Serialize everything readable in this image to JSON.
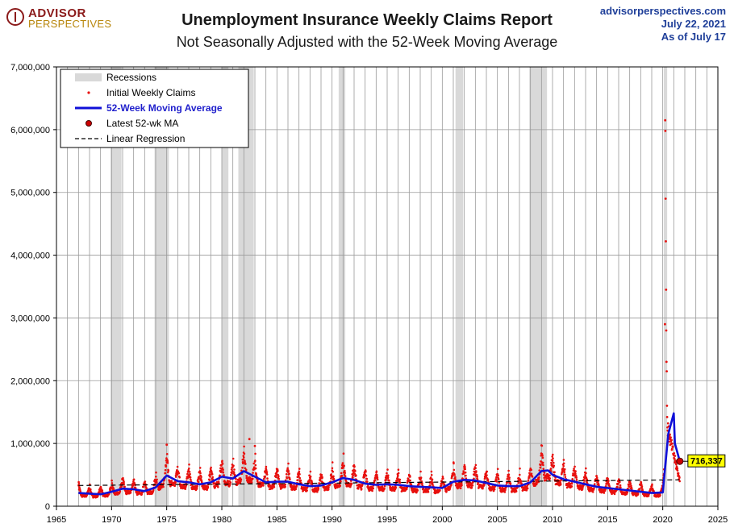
{
  "logo": {
    "line1": "ADVISOR",
    "line2": "PERSPECTIVES"
  },
  "header": {
    "title": "Unemployment Insurance Weekly Claims Report",
    "subtitle": "Not Seasonally Adjusted with the 52-Week Moving Average",
    "site": "advisorperspectives.com",
    "date": "July 22, 2021",
    "as_of": "As of July 17"
  },
  "colors": {
    "ma": "#1010d8",
    "claims": "#e8100e",
    "recession": "#d9d9d9",
    "callout": "#ffff00"
  },
  "chart_data": {
    "type": "line",
    "x_range": [
      1965,
      2025
    ],
    "y_range": [
      0,
      7000000
    ],
    "x_ticks": [
      "1965",
      "1970",
      "1975",
      "1980",
      "1985",
      "1990",
      "1995",
      "2000",
      "2005",
      "2010",
      "2015",
      "2020",
      "2025"
    ],
    "y_ticks": [
      "0",
      "1,000,000",
      "2,000,000",
      "3,000,000",
      "4,000,000",
      "5,000,000",
      "6,000,000",
      "7,000,000"
    ],
    "legend": {
      "position": "top-left",
      "entries": [
        "Recessions",
        "Initial Weekly Claims",
        "52-Week Moving Average",
        "Latest 52-wk MA",
        "Linear Regression"
      ]
    },
    "recessions": [
      [
        1969.9,
        1970.9
      ],
      [
        1973.9,
        1975.2
      ],
      [
        1980.0,
        1980.6
      ],
      [
        1981.5,
        1982.9
      ],
      [
        1990.6,
        1991.2
      ],
      [
        2001.2,
        2001.9
      ],
      [
        2007.9,
        2009.5
      ],
      [
        2020.1,
        2020.4
      ]
    ],
    "moving_average": {
      "x": [
        1967.0,
        1968.0,
        1969.0,
        1970.0,
        1971.0,
        1972.0,
        1973.0,
        1974.0,
        1975.0,
        1976.0,
        1977.0,
        1978.0,
        1979.0,
        1980.0,
        1981.0,
        1982.0,
        1983.0,
        1984.0,
        1985.0,
        1986.0,
        1987.0,
        1988.0,
        1989.0,
        1990.0,
        1991.0,
        1992.0,
        1993.0,
        1994.0,
        1995.0,
        1996.0,
        1997.0,
        1998.0,
        1999.0,
        2000.0,
        2001.0,
        2002.0,
        2003.0,
        2004.0,
        2005.0,
        2006.0,
        2007.0,
        2008.0,
        2009.0,
        2009.6,
        2010.0,
        2011.0,
        2012.0,
        2013.0,
        2014.0,
        2015.0,
        2016.0,
        2017.0,
        2018.0,
        2019.0,
        2020.0,
        2020.3,
        2020.5,
        2021.0,
        2021.1,
        2021.55
      ],
      "y": [
        210000,
        200000,
        190000,
        230000,
        280000,
        270000,
        240000,
        300000,
        490000,
        400000,
        380000,
        350000,
        380000,
        470000,
        440000,
        560000,
        470000,
        380000,
        390000,
        390000,
        350000,
        320000,
        330000,
        380000,
        450000,
        420000,
        360000,
        340000,
        350000,
        340000,
        320000,
        310000,
        300000,
        290000,
        390000,
        420000,
        410000,
        370000,
        330000,
        320000,
        320000,
        380000,
        560000,
        570000,
        500000,
        430000,
        390000,
        350000,
        310000,
        290000,
        270000,
        250000,
        230000,
        210000,
        220000,
        780000,
        1150000,
        1480000,
        1000000,
        716337
      ]
    },
    "regression": {
      "x": [
        1967,
        2021.5
      ],
      "y": [
        330000,
        420000
      ]
    },
    "claims_spikes": {
      "x": [
        1975.0,
        1982.5,
        1983.0,
        2009.0,
        2020.2,
        2020.22,
        2020.24,
        2020.26,
        2020.28,
        2020.3,
        2020.32,
        2020.34,
        2020.36,
        2020.38,
        2020.4
      ],
      "y": [
        980000,
        1070000,
        960000,
        970000,
        2900000,
        6150000,
        5980000,
        4900000,
        4220000,
        3450000,
        2800000,
        2300000,
        2150000,
        1600000,
        1420000
      ]
    },
    "latest_ma": {
      "x": 2021.55,
      "y": 716337,
      "label": "716,337"
    }
  }
}
